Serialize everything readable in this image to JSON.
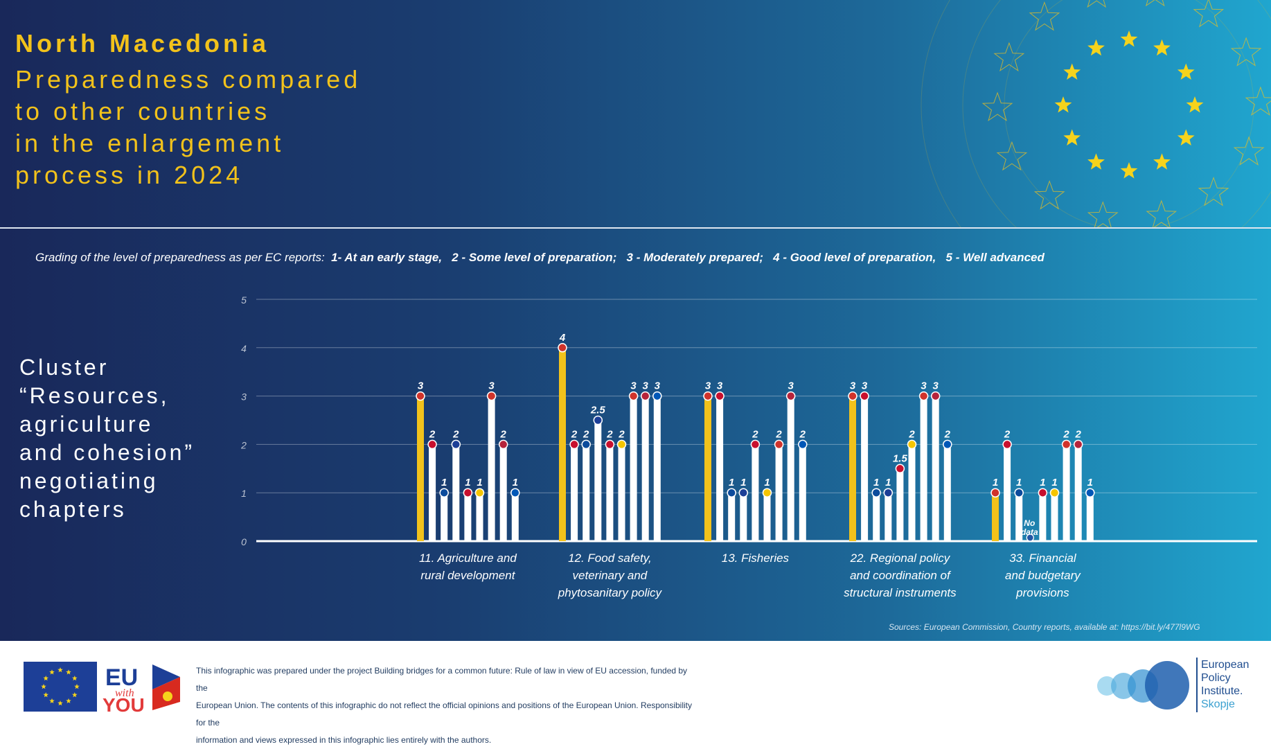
{
  "header": {
    "title": "North Macedonia",
    "subtitle_lines": [
      "Preparedness compared",
      "to other countries",
      "in the enlargement",
      "process in 2024"
    ]
  },
  "grading": {
    "intro": "Grading of the level of preparedness as per EC reports:",
    "levels": [
      "1- At an early stage,",
      "2 - Some level of preparation;",
      "3 - Moderately prepared;",
      "4 - Good level of preparation,",
      "5 - Well advanced"
    ]
  },
  "cluster_lines": [
    "Cluster",
    "“Resources,",
    "agriculture",
    "and cohesion”",
    "negotiating",
    "chapters"
  ],
  "chart_data": {
    "type": "bar",
    "ylim": [
      0,
      5
    ],
    "yticks": [
      "0",
      "1",
      "2",
      "3",
      "4",
      "5"
    ],
    "grid": true,
    "highlight_color": "#f2c21b",
    "bar_color": "#ffffff",
    "groups": [
      {
        "label_lines": [
          "11. Agriculture and",
          "rural development"
        ],
        "values": [
          3,
          2,
          1,
          2,
          1,
          1,
          3,
          2,
          1
        ],
        "value_labels": [
          "3",
          "2",
          "1",
          "2",
          "1",
          "1",
          "3",
          "2",
          "1"
        ]
      },
      {
        "label_lines": [
          "12. Food safety,",
          "veterinary and",
          "phytosanitary policy"
        ],
        "values": [
          4,
          2,
          2,
          2.5,
          2,
          2,
          3,
          3,
          3
        ],
        "value_labels": [
          "4",
          "2",
          "2",
          "2.5",
          "2",
          "2",
          "3",
          "3",
          "3"
        ]
      },
      {
        "label_lines": [
          "13. Fisheries"
        ],
        "values": [
          3,
          3,
          1,
          1,
          2,
          1,
          2,
          3,
          2
        ],
        "value_labels": [
          "3",
          "3",
          "1",
          "1",
          "2",
          "1",
          "2",
          "3",
          "2"
        ]
      },
      {
        "label_lines": [
          "22. Regional policy",
          "and coordination of",
          "structural instruments"
        ],
        "values": [
          3,
          3,
          1,
          1,
          1.5,
          2,
          3,
          3,
          2
        ],
        "value_labels": [
          "3",
          "3",
          "1",
          "1",
          "1.5",
          "2",
          "3",
          "3",
          "2"
        ]
      },
      {
        "label_lines": [
          "33. Financial",
          "and budgetary",
          "provisions"
        ],
        "values": [
          1,
          2,
          1,
          null,
          1,
          1,
          2,
          2,
          1
        ],
        "value_labels": [
          "1",
          "2",
          "1",
          "",
          "1",
          "1",
          "2",
          "2",
          "1"
        ],
        "missing_label": [
          "No",
          "data"
        ]
      }
    ]
  },
  "sources": "Sources: European Commission, Country reports, available at: https://bit.ly/477l9WG",
  "footer": {
    "eu_with_you": {
      "line1": "EU",
      "line2": "with",
      "line3": "YOU"
    },
    "disclaimer_lines": [
      "This infographic was prepared under the project Building bridges for a common future: Rule of law in view of EU accession, funded by the",
      "European Union. The contents of this infographic do not reflect the official opinions and positions of the European Union. Responsibility for the",
      "information and views expressed in this infographic lies entirely with the authors."
    ],
    "epi": {
      "lines": [
        "European",
        "Policy",
        "Institute."
      ],
      "city": "Skopje"
    }
  },
  "colors": {
    "accent": "#f2c21b",
    "navy": "#19285a",
    "cyan": "#20a6cf"
  },
  "icons": [
    "eu-flag-icon",
    "star-icon",
    "epi-logo-icon"
  ]
}
